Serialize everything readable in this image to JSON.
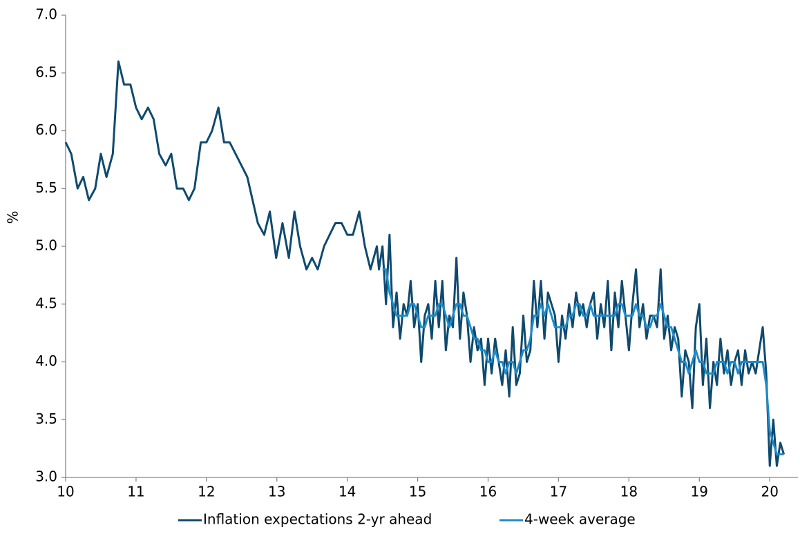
{
  "chart_data": {
    "type": "line",
    "ylabel": "%",
    "x": [
      10,
      10.08,
      10.17,
      10.25,
      10.33,
      10.42,
      10.5,
      10.58,
      10.67,
      10.75,
      10.83,
      10.92,
      11,
      11.08,
      11.17,
      11.25,
      11.33,
      11.42,
      11.5,
      11.58,
      11.67,
      11.75,
      11.83,
      11.92,
      12,
      12.08,
      12.17,
      12.25,
      12.33,
      12.58,
      12.73,
      12.82,
      12.9,
      12.99,
      13.08,
      13.17,
      13.25,
      13.33,
      13.42,
      13.5,
      13.58,
      13.67,
      13.75,
      13.83,
      13.92,
      14,
      14.08,
      14.17,
      14.25,
      14.33,
      14.42,
      14.45,
      14.5,
      14.55,
      14.6,
      14.65,
      14.7,
      14.75,
      14.8,
      14.85,
      14.9,
      14.95,
      15,
      15.05,
      15.1,
      15.15,
      15.2,
      15.25,
      15.3,
      15.35,
      15.4,
      15.45,
      15.5,
      15.55,
      15.6,
      15.65,
      15.7,
      15.75,
      15.8,
      15.85,
      15.9,
      15.95,
      16,
      16.05,
      16.1,
      16.15,
      16.2,
      16.25,
      16.3,
      16.35,
      16.4,
      16.45,
      16.5,
      16.55,
      16.6,
      16.65,
      16.7,
      16.75,
      16.8,
      16.85,
      16.9,
      16.95,
      17,
      17.05,
      17.1,
      17.15,
      17.2,
      17.25,
      17.3,
      17.35,
      17.4,
      17.45,
      17.5,
      17.55,
      17.6,
      17.65,
      17.7,
      17.75,
      17.8,
      17.85,
      17.9,
      17.95,
      18,
      18.05,
      18.1,
      18.15,
      18.2,
      18.25,
      18.3,
      18.35,
      18.4,
      18.45,
      18.5,
      18.55,
      18.6,
      18.65,
      18.7,
      18.75,
      18.8,
      18.85,
      18.9,
      18.95,
      19,
      19.05,
      19.1,
      19.15,
      19.2,
      19.25,
      19.3,
      19.35,
      19.4,
      19.45,
      19.5,
      19.55,
      19.6,
      19.65,
      19.7,
      19.75,
      19.8,
      19.85,
      19.9,
      19.95,
      20,
      20.05,
      20.1,
      20.15,
      20.2
    ],
    "series": [
      {
        "name": "Inflation expectations 2-yr ahead",
        "color": "#0f4a6e",
        "values": [
          5.9,
          5.8,
          5.5,
          5.6,
          5.4,
          5.5,
          5.8,
          5.6,
          5.8,
          6.6,
          6.4,
          6.4,
          6.2,
          6.1,
          6.2,
          6.1,
          5.8,
          5.7,
          5.8,
          5.5,
          5.5,
          5.4,
          5.5,
          5.9,
          5.9,
          6.0,
          6.2,
          5.9,
          5.9,
          5.6,
          5.2,
          5.1,
          5.3,
          4.9,
          5.2,
          4.9,
          5.3,
          5.0,
          4.8,
          4.9,
          4.8,
          5.0,
          5.1,
          5.2,
          5.2,
          5.1,
          5.1,
          5.3,
          5.0,
          4.8,
          5.0,
          4.8,
          5.0,
          4.5,
          5.1,
          4.3,
          4.6,
          4.2,
          4.5,
          4.4,
          4.7,
          4.3,
          4.5,
          4.0,
          4.4,
          4.5,
          4.2,
          4.7,
          4.3,
          4.7,
          4.1,
          4.4,
          4.3,
          4.9,
          4.2,
          4.6,
          4.4,
          4.0,
          4.3,
          4.1,
          4.2,
          3.8,
          4.2,
          3.9,
          4.2,
          4.0,
          3.8,
          4.1,
          3.7,
          4.3,
          3.8,
          3.9,
          4.4,
          4.0,
          4.1,
          4.7,
          4.3,
          4.7,
          4.2,
          4.6,
          4.5,
          4.4,
          4.0,
          4.4,
          4.2,
          4.5,
          4.3,
          4.6,
          4.4,
          4.5,
          4.3,
          4.5,
          4.6,
          4.2,
          4.5,
          4.3,
          4.7,
          4.1,
          4.6,
          4.3,
          4.7,
          4.4,
          4.1,
          4.5,
          4.8,
          4.3,
          4.5,
          4.2,
          4.4,
          4.4,
          4.3,
          4.8,
          4.2,
          4.4,
          4.1,
          4.3,
          4.2,
          3.7,
          4.1,
          4.0,
          3.6,
          4.3,
          4.5,
          3.8,
          4.2,
          3.6,
          4.0,
          3.8,
          4.2,
          3.9,
          4.1,
          3.8,
          4.0,
          4.1,
          3.8,
          4.1,
          3.9,
          4.0,
          3.9,
          4.1,
          4.3,
          3.9,
          3.1,
          3.5,
          3.1,
          3.3,
          3.2
        ]
      },
      {
        "name": "4-week average",
        "color": "#1a8ccc",
        "values": [
          null,
          null,
          null,
          null,
          null,
          null,
          null,
          null,
          null,
          null,
          null,
          null,
          null,
          null,
          null,
          null,
          null,
          null,
          null,
          null,
          null,
          null,
          null,
          null,
          null,
          null,
          null,
          null,
          null,
          null,
          null,
          null,
          null,
          null,
          null,
          null,
          null,
          null,
          null,
          null,
          null,
          null,
          null,
          null,
          null,
          null,
          null,
          null,
          null,
          null,
          null,
          null,
          4.8,
          4.8,
          4.6,
          4.5,
          4.4,
          4.4,
          4.4,
          4.4,
          4.5,
          4.5,
          4.4,
          4.3,
          4.3,
          4.4,
          4.4,
          4.4,
          4.5,
          4.5,
          4.4,
          4.3,
          4.4,
          4.5,
          4.5,
          4.4,
          4.4,
          4.3,
          4.2,
          4.2,
          4.1,
          4.1,
          4.0,
          4.0,
          4.1,
          4.0,
          4.0,
          3.9,
          4.0,
          4.0,
          3.9,
          4.0,
          4.1,
          4.1,
          4.2,
          4.4,
          4.4,
          4.5,
          4.4,
          4.5,
          4.4,
          4.3,
          4.3,
          4.3,
          4.3,
          4.4,
          4.4,
          4.5,
          4.5,
          4.4,
          4.4,
          4.5,
          4.4,
          4.4,
          4.4,
          4.4,
          4.4,
          4.4,
          4.4,
          4.5,
          4.5,
          4.4,
          4.4,
          4.4,
          4.5,
          4.4,
          4.4,
          4.3,
          4.3,
          4.4,
          4.4,
          4.5,
          4.4,
          4.3,
          4.3,
          4.2,
          4.1,
          4.0,
          4.0,
          3.9,
          4.0,
          4.1,
          4.0,
          4.0,
          3.9,
          3.9,
          3.9,
          4.0,
          4.0,
          4.0,
          3.9,
          4.0,
          4.0,
          3.9,
          4.0,
          4.0,
          4.0,
          4.0,
          4.0,
          4.0,
          4.0,
          3.8,
          3.4,
          3.3,
          3.2,
          3.2,
          3.2
        ]
      }
    ],
    "xlim": [
      10,
      20.4
    ],
    "xticks": [
      10,
      11,
      12,
      13,
      14,
      15,
      16,
      17,
      18,
      19,
      20
    ],
    "ylim": [
      3,
      7
    ],
    "yticks": [
      {
        "value": 3,
        "label": "3.0"
      },
      3.5,
      {
        "value": 4,
        "label": "4.0"
      },
      4.5,
      {
        "value": 5,
        "label": "5.0"
      },
      5.5,
      {
        "value": 6,
        "label": "6.0"
      },
      6.5,
      {
        "value": 7,
        "label": "7.0"
      }
    ],
    "legend": "bottom"
  }
}
